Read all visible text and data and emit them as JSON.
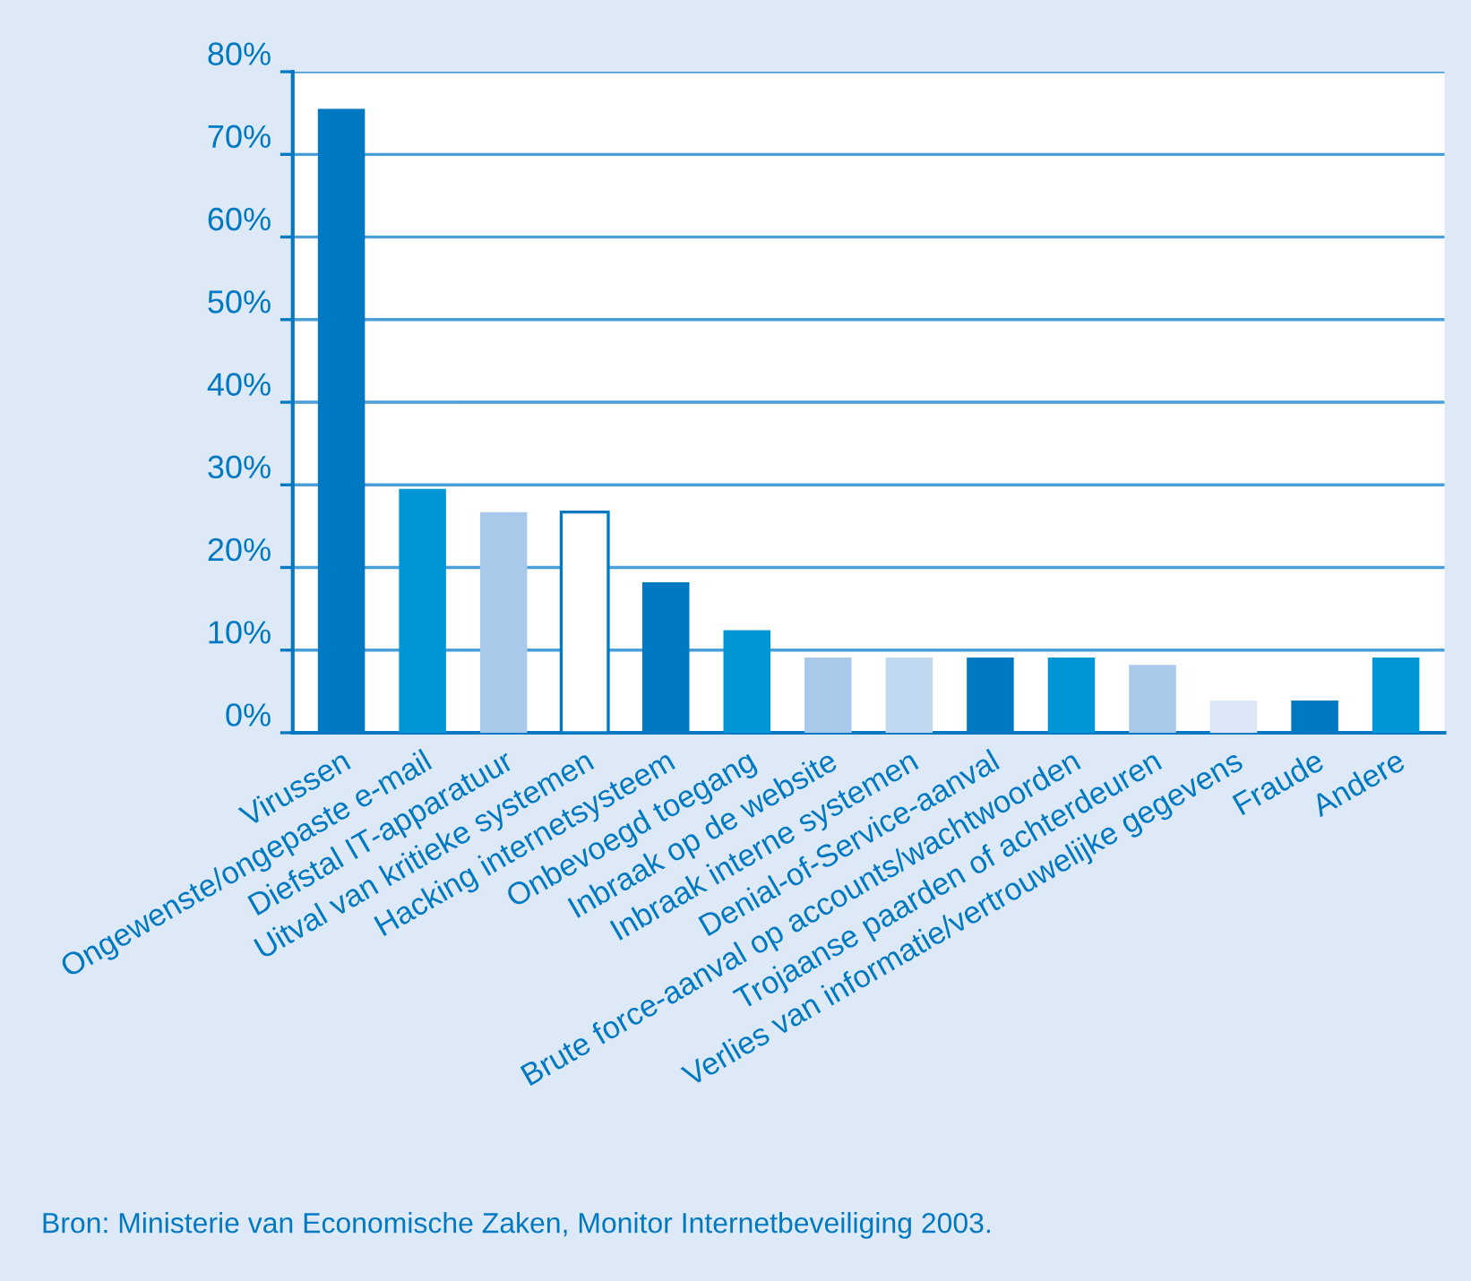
{
  "chart_data": {
    "type": "bar",
    "categories": [
      "Virussen",
      "Ongewenste/ongepaste e-mail",
      "Diefstal IT-apparatuur",
      "Uitval van kritieke systemen",
      "Hacking internetsysteem",
      "Onbevoegd toegang",
      "Inbraak op de website",
      "Inbraak interne systemen",
      "Denial-of-Service-aanval",
      "Brute force-aanval op accounts/wachtwoorden",
      "Trojaanse paarden of achterdeuren",
      "Verlies van informatie/vertrouwelijke gegevens",
      "Fraude",
      "Andere"
    ],
    "values": [
      75.5,
      29.5,
      26.7,
      26.7,
      18.2,
      12.4,
      9.1,
      9.1,
      9.1,
      9.1,
      8.2,
      3.9,
      3.9,
      9.1
    ],
    "colors": [
      "#0079c2",
      "#0096d6",
      "#a8c9ea",
      "#ffffff",
      "#0079c2",
      "#0096d6",
      "#a8c9ea",
      "#c0d8f0",
      "#0079c2",
      "#0096d6",
      "#a8c9ea",
      "#dce8f7",
      "#0079c2",
      "#0096d6"
    ],
    "ylim": [
      0,
      80
    ],
    "yticks": [
      {
        "value": 0,
        "label": "0%"
      },
      {
        "value": 10,
        "label": "10%"
      },
      {
        "value": 20,
        "label": "20%"
      },
      {
        "value": 30,
        "label": "30%"
      },
      {
        "value": 40,
        "label": "40%"
      },
      {
        "value": 50,
        "label": "50%"
      },
      {
        "value": 60,
        "label": "60%"
      },
      {
        "value": 70,
        "label": "70%"
      },
      {
        "value": 80,
        "label": "80%"
      }
    ],
    "grid": "y",
    "annotations": [
      "Bron: Ministerie van Economische Zaken, Monitor Internetbeveiliging 2003."
    ]
  }
}
